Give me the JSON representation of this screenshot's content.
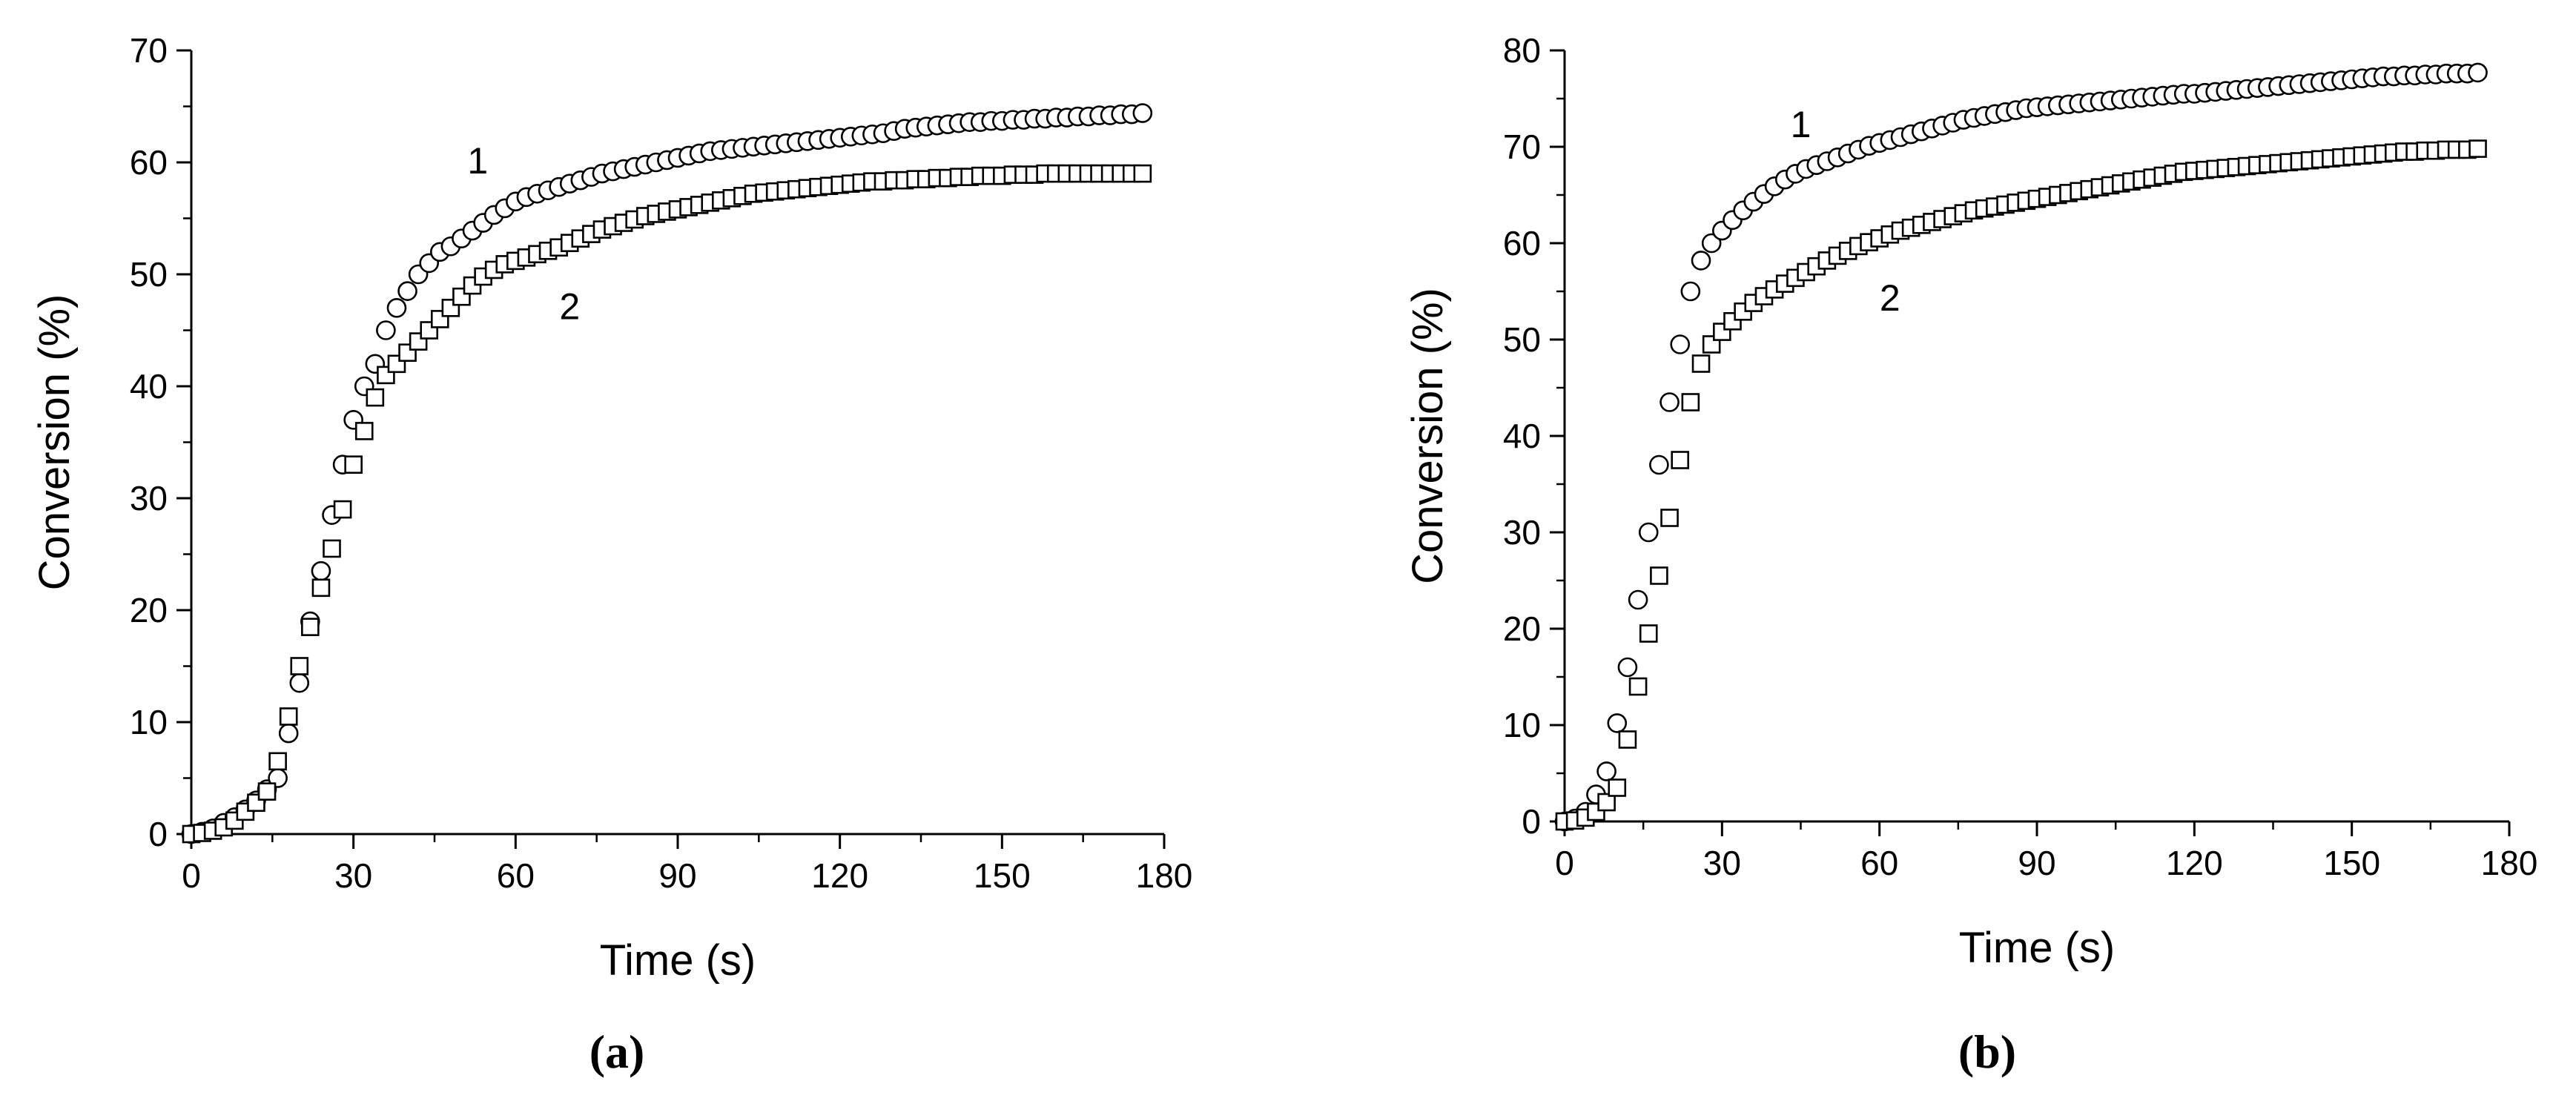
{
  "figure": {
    "panels": [
      "(a)",
      "(b)"
    ]
  },
  "chart_data": [
    {
      "type": "scatter",
      "panel_label": "(a)",
      "title": "",
      "xlabel": "Time (s)",
      "ylabel": "Conversion (%)",
      "xlim": [
        0,
        180
      ],
      "ylim": [
        0,
        70
      ],
      "xticks": [
        0,
        30,
        60,
        90,
        120,
        150,
        180
      ],
      "yticks": [
        0,
        10,
        20,
        30,
        40,
        50,
        60,
        70
      ],
      "grid": false,
      "legend": "none",
      "curve_labels": [
        {
          "text": "1",
          "x": 53,
          "y": 59
        },
        {
          "text": "2",
          "x": 70,
          "y": 46
        }
      ],
      "series": [
        {
          "marker": "circle",
          "x": [
            0,
            2,
            4,
            6,
            8,
            10,
            12,
            14,
            16,
            18,
            20,
            22,
            24,
            26,
            28,
            30,
            32,
            34,
            36,
            38,
            40,
            42,
            44,
            46,
            48,
            50,
            52,
            54,
            56,
            58,
            60,
            62,
            64,
            66,
            68,
            70,
            72,
            74,
            76,
            78,
            80,
            82,
            84,
            86,
            88,
            90,
            92,
            94,
            96,
            98,
            100,
            102,
            104,
            106,
            108,
            110,
            112,
            114,
            116,
            118,
            120,
            122,
            124,
            126,
            128,
            130,
            132,
            134,
            136,
            138,
            140,
            142,
            144,
            146,
            148,
            150,
            152,
            154,
            156,
            158,
            160,
            162,
            164,
            166,
            168,
            170,
            172,
            174,
            176
          ],
          "y": [
            0,
            0.2,
            0.5,
            1,
            1.5,
            2.2,
            3,
            4,
            5,
            9,
            13.5,
            19,
            23.5,
            28.5,
            33,
            37,
            40,
            42,
            45,
            47,
            48.5,
            50,
            51,
            52,
            52.5,
            53.2,
            53.9,
            54.6,
            55.3,
            55.9,
            56.5,
            56.9,
            57.2,
            57.5,
            57.8,
            58.1,
            58.4,
            58.7,
            59,
            59.2,
            59.4,
            59.6,
            59.8,
            60,
            60.2,
            60.4,
            60.6,
            60.8,
            61,
            61.1,
            61.2,
            61.3,
            61.4,
            61.5,
            61.6,
            61.7,
            61.8,
            61.9,
            62,
            62.1,
            62.2,
            62.3,
            62.4,
            62.5,
            62.6,
            62.8,
            63,
            63.1,
            63.2,
            63.3,
            63.4,
            63.5,
            63.6,
            63.6,
            63.7,
            63.7,
            63.8,
            63.8,
            63.9,
            63.9,
            64,
            64,
            64.1,
            64.1,
            64.2,
            64.2,
            64.3,
            64.3,
            64.4
          ]
        },
        {
          "marker": "square",
          "x": [
            0,
            2,
            4,
            6,
            8,
            10,
            12,
            14,
            16,
            18,
            20,
            22,
            24,
            26,
            28,
            30,
            32,
            34,
            36,
            38,
            40,
            42,
            44,
            46,
            48,
            50,
            52,
            54,
            56,
            58,
            60,
            62,
            64,
            66,
            68,
            70,
            72,
            74,
            76,
            78,
            80,
            82,
            84,
            86,
            88,
            90,
            92,
            94,
            96,
            98,
            100,
            102,
            104,
            106,
            108,
            110,
            112,
            114,
            116,
            118,
            120,
            122,
            124,
            126,
            128,
            130,
            132,
            134,
            136,
            138,
            140,
            142,
            144,
            146,
            148,
            150,
            152,
            154,
            156,
            158,
            160,
            162,
            164,
            166,
            168,
            170,
            172,
            174,
            176
          ],
          "y": [
            0,
            0.1,
            0.3,
            0.6,
            1.2,
            2,
            2.8,
            3.8,
            6.5,
            10.5,
            15,
            18.5,
            22,
            25.5,
            29,
            33,
            36,
            39,
            41,
            42,
            43,
            44,
            45,
            46,
            47,
            48,
            49,
            49.8,
            50.4,
            50.9,
            51.2,
            51.5,
            51.8,
            52.1,
            52.4,
            52.8,
            53.2,
            53.6,
            54,
            54.3,
            54.6,
            54.9,
            55.2,
            55.4,
            55.6,
            55.8,
            56,
            56.2,
            56.4,
            56.6,
            56.8,
            57,
            57.2,
            57.3,
            57.4,
            57.5,
            57.6,
            57.7,
            57.8,
            57.9,
            58,
            58.1,
            58.2,
            58.3,
            58.3,
            58.4,
            58.4,
            58.5,
            58.5,
            58.6,
            58.6,
            58.7,
            58.7,
            58.8,
            58.8,
            58.8,
            58.9,
            58.9,
            58.9,
            59,
            59,
            59,
            59,
            59,
            59,
            59,
            59,
            59,
            59
          ]
        }
      ]
    },
    {
      "type": "scatter",
      "panel_label": "(b)",
      "title": "",
      "xlabel": "Time (s)",
      "ylabel": "Conversion (%)",
      "xlim": [
        0,
        180
      ],
      "ylim": [
        0,
        80
      ],
      "xticks": [
        0,
        30,
        60,
        90,
        120,
        150,
        180
      ],
      "yticks": [
        0,
        10,
        20,
        30,
        40,
        50,
        60,
        70,
        80
      ],
      "grid": false,
      "legend": "none",
      "curve_labels": [
        {
          "text": "1",
          "x": 45,
          "y": 71
        },
        {
          "text": "2",
          "x": 62,
          "y": 53
        }
      ],
      "series": [
        {
          "marker": "circle",
          "x": [
            0,
            2,
            4,
            6,
            8,
            10,
            12,
            14,
            16,
            18,
            20,
            22,
            24,
            26,
            28,
            30,
            32,
            34,
            36,
            38,
            40,
            42,
            44,
            46,
            48,
            50,
            52,
            54,
            56,
            58,
            60,
            62,
            64,
            66,
            68,
            70,
            72,
            74,
            76,
            78,
            80,
            82,
            84,
            86,
            88,
            90,
            92,
            94,
            96,
            98,
            100,
            102,
            104,
            106,
            108,
            110,
            112,
            114,
            116,
            118,
            120,
            122,
            124,
            126,
            128,
            130,
            132,
            134,
            136,
            138,
            140,
            142,
            144,
            146,
            148,
            150,
            152,
            154,
            156,
            158,
            160,
            162,
            164,
            166,
            168,
            170,
            172,
            174
          ],
          "y": [
            0,
            0.3,
            1,
            2.8,
            5.2,
            10.2,
            16,
            23,
            30,
            37,
            43.5,
            49.5,
            55,
            58.2,
            60,
            61.3,
            62.4,
            63.4,
            64.3,
            65.1,
            65.9,
            66.6,
            67.2,
            67.7,
            68.1,
            68.5,
            68.9,
            69.3,
            69.7,
            70.1,
            70.4,
            70.7,
            71,
            71.3,
            71.6,
            71.9,
            72.2,
            72.5,
            72.8,
            73,
            73.2,
            73.4,
            73.6,
            73.8,
            74,
            74.1,
            74.2,
            74.3,
            74.4,
            74.5,
            74.6,
            74.7,
            74.8,
            74.9,
            75,
            75.1,
            75.2,
            75.3,
            75.4,
            75.5,
            75.5,
            75.6,
            75.7,
            75.8,
            75.9,
            76,
            76.1,
            76.2,
            76.3,
            76.4,
            76.5,
            76.6,
            76.7,
            76.8,
            76.9,
            77,
            77.1,
            77.2,
            77.3,
            77.3,
            77.4,
            77.4,
            77.5,
            77.5,
            77.6,
            77.6,
            77.6,
            77.7
          ]
        },
        {
          "marker": "square",
          "x": [
            0,
            2,
            4,
            6,
            8,
            10,
            12,
            14,
            16,
            18,
            20,
            22,
            24,
            26,
            28,
            30,
            32,
            34,
            36,
            38,
            40,
            42,
            44,
            46,
            48,
            50,
            52,
            54,
            56,
            58,
            60,
            62,
            64,
            66,
            68,
            70,
            72,
            74,
            76,
            78,
            80,
            82,
            84,
            86,
            88,
            90,
            92,
            94,
            96,
            98,
            100,
            102,
            104,
            106,
            108,
            110,
            112,
            114,
            116,
            118,
            120,
            122,
            124,
            126,
            128,
            130,
            132,
            134,
            136,
            138,
            140,
            142,
            144,
            146,
            148,
            150,
            152,
            154,
            156,
            158,
            160,
            162,
            164,
            166,
            168,
            170,
            172,
            174
          ],
          "y": [
            0,
            0.1,
            0.4,
            1,
            2,
            3.5,
            8.5,
            14,
            19.5,
            25.5,
            31.5,
            37.5,
            43.5,
            47.5,
            49.5,
            50.8,
            51.9,
            52.9,
            53.8,
            54.5,
            55.2,
            55.8,
            56.4,
            57,
            57.6,
            58.2,
            58.7,
            59.2,
            59.7,
            60.1,
            60.5,
            60.9,
            61.3,
            61.6,
            61.9,
            62.2,
            62.5,
            62.8,
            63.1,
            63.4,
            63.6,
            63.8,
            64,
            64.2,
            64.4,
            64.6,
            64.8,
            65,
            65.2,
            65.4,
            65.6,
            65.8,
            66,
            66.2,
            66.4,
            66.6,
            66.8,
            67,
            67.2,
            67.4,
            67.5,
            67.6,
            67.7,
            67.8,
            67.9,
            68,
            68.1,
            68.2,
            68.3,
            68.4,
            68.5,
            68.6,
            68.7,
            68.8,
            68.9,
            69,
            69.1,
            69.2,
            69.3,
            69.4,
            69.5,
            69.5,
            69.6,
            69.6,
            69.7,
            69.7,
            69.7,
            69.8
          ]
        }
      ]
    }
  ]
}
